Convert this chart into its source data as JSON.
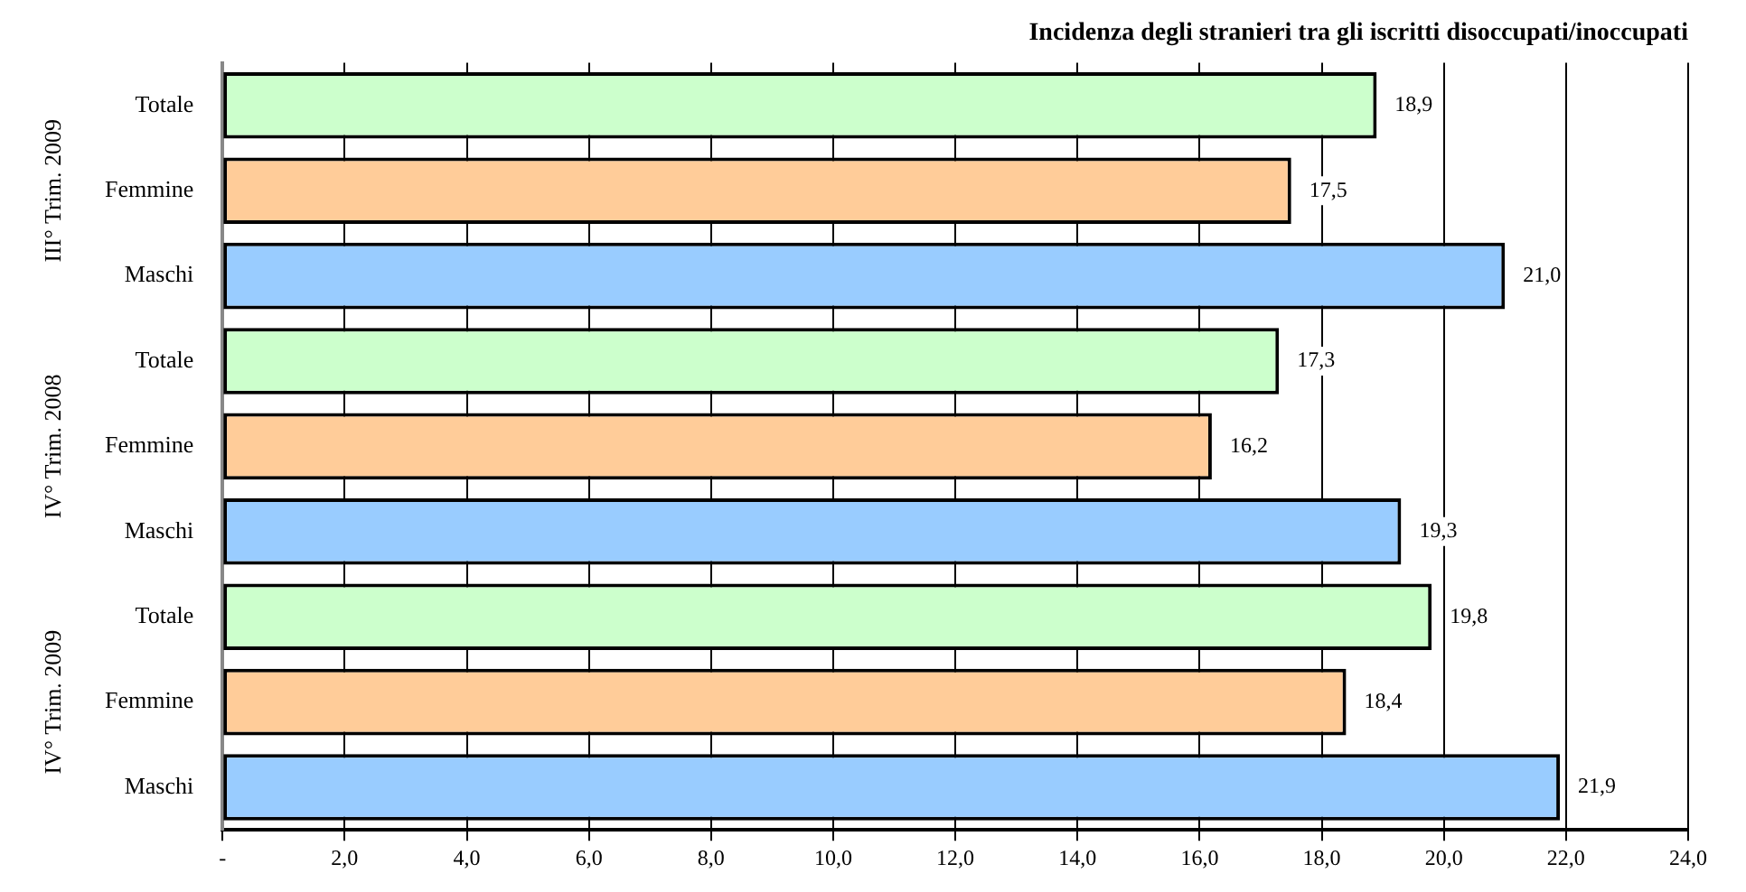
{
  "chart_data": {
    "type": "bar",
    "orientation": "horizontal",
    "title": "Incidenza degli stranieri tra gli iscritti disoccupati/inoccupati",
    "categories": [
      "Totale",
      "Femmine",
      "Maschi",
      "Totale",
      "Femmine",
      "Maschi",
      "Totale",
      "Femmine",
      "Maschi"
    ],
    "values": [
      18.9,
      17.5,
      21.0,
      17.3,
      16.2,
      19.3,
      19.8,
      18.4,
      21.9
    ],
    "colors": [
      "#ccffcc",
      "#ffcc99",
      "#99ccff",
      "#ccffcc",
      "#ffcc99",
      "#99ccff",
      "#ccffcc",
      "#ffcc99",
      "#99ccff"
    ],
    "value_labels": [
      "18,9",
      "17,5",
      "21,0",
      "17,3",
      "16,2",
      "19,3",
      "19,8",
      "18,4",
      "21,9"
    ],
    "xlim": [
      0,
      24
    ],
    "xticks": [
      {
        "value": 0,
        "label": "-"
      },
      {
        "value": 2,
        "label": "2,0"
      },
      {
        "value": 4,
        "label": "4,0"
      },
      {
        "value": 6,
        "label": "6,0"
      },
      {
        "value": 8,
        "label": "8,0"
      },
      {
        "value": 10,
        "label": "10,0"
      },
      {
        "value": 12,
        "label": "12,0"
      },
      {
        "value": 14,
        "label": "14,0"
      },
      {
        "value": 16,
        "label": "16,0"
      },
      {
        "value": 18,
        "label": "18,0"
      },
      {
        "value": 20,
        "label": "20,0"
      },
      {
        "value": 22,
        "label": "22,0"
      },
      {
        "value": 24,
        "label": "24,0"
      }
    ],
    "grid": "x",
    "legend": false,
    "annotations": [
      "III° Trim. 2009",
      "IV° Trim. 2008",
      "IV° Trim. 2009"
    ]
  }
}
